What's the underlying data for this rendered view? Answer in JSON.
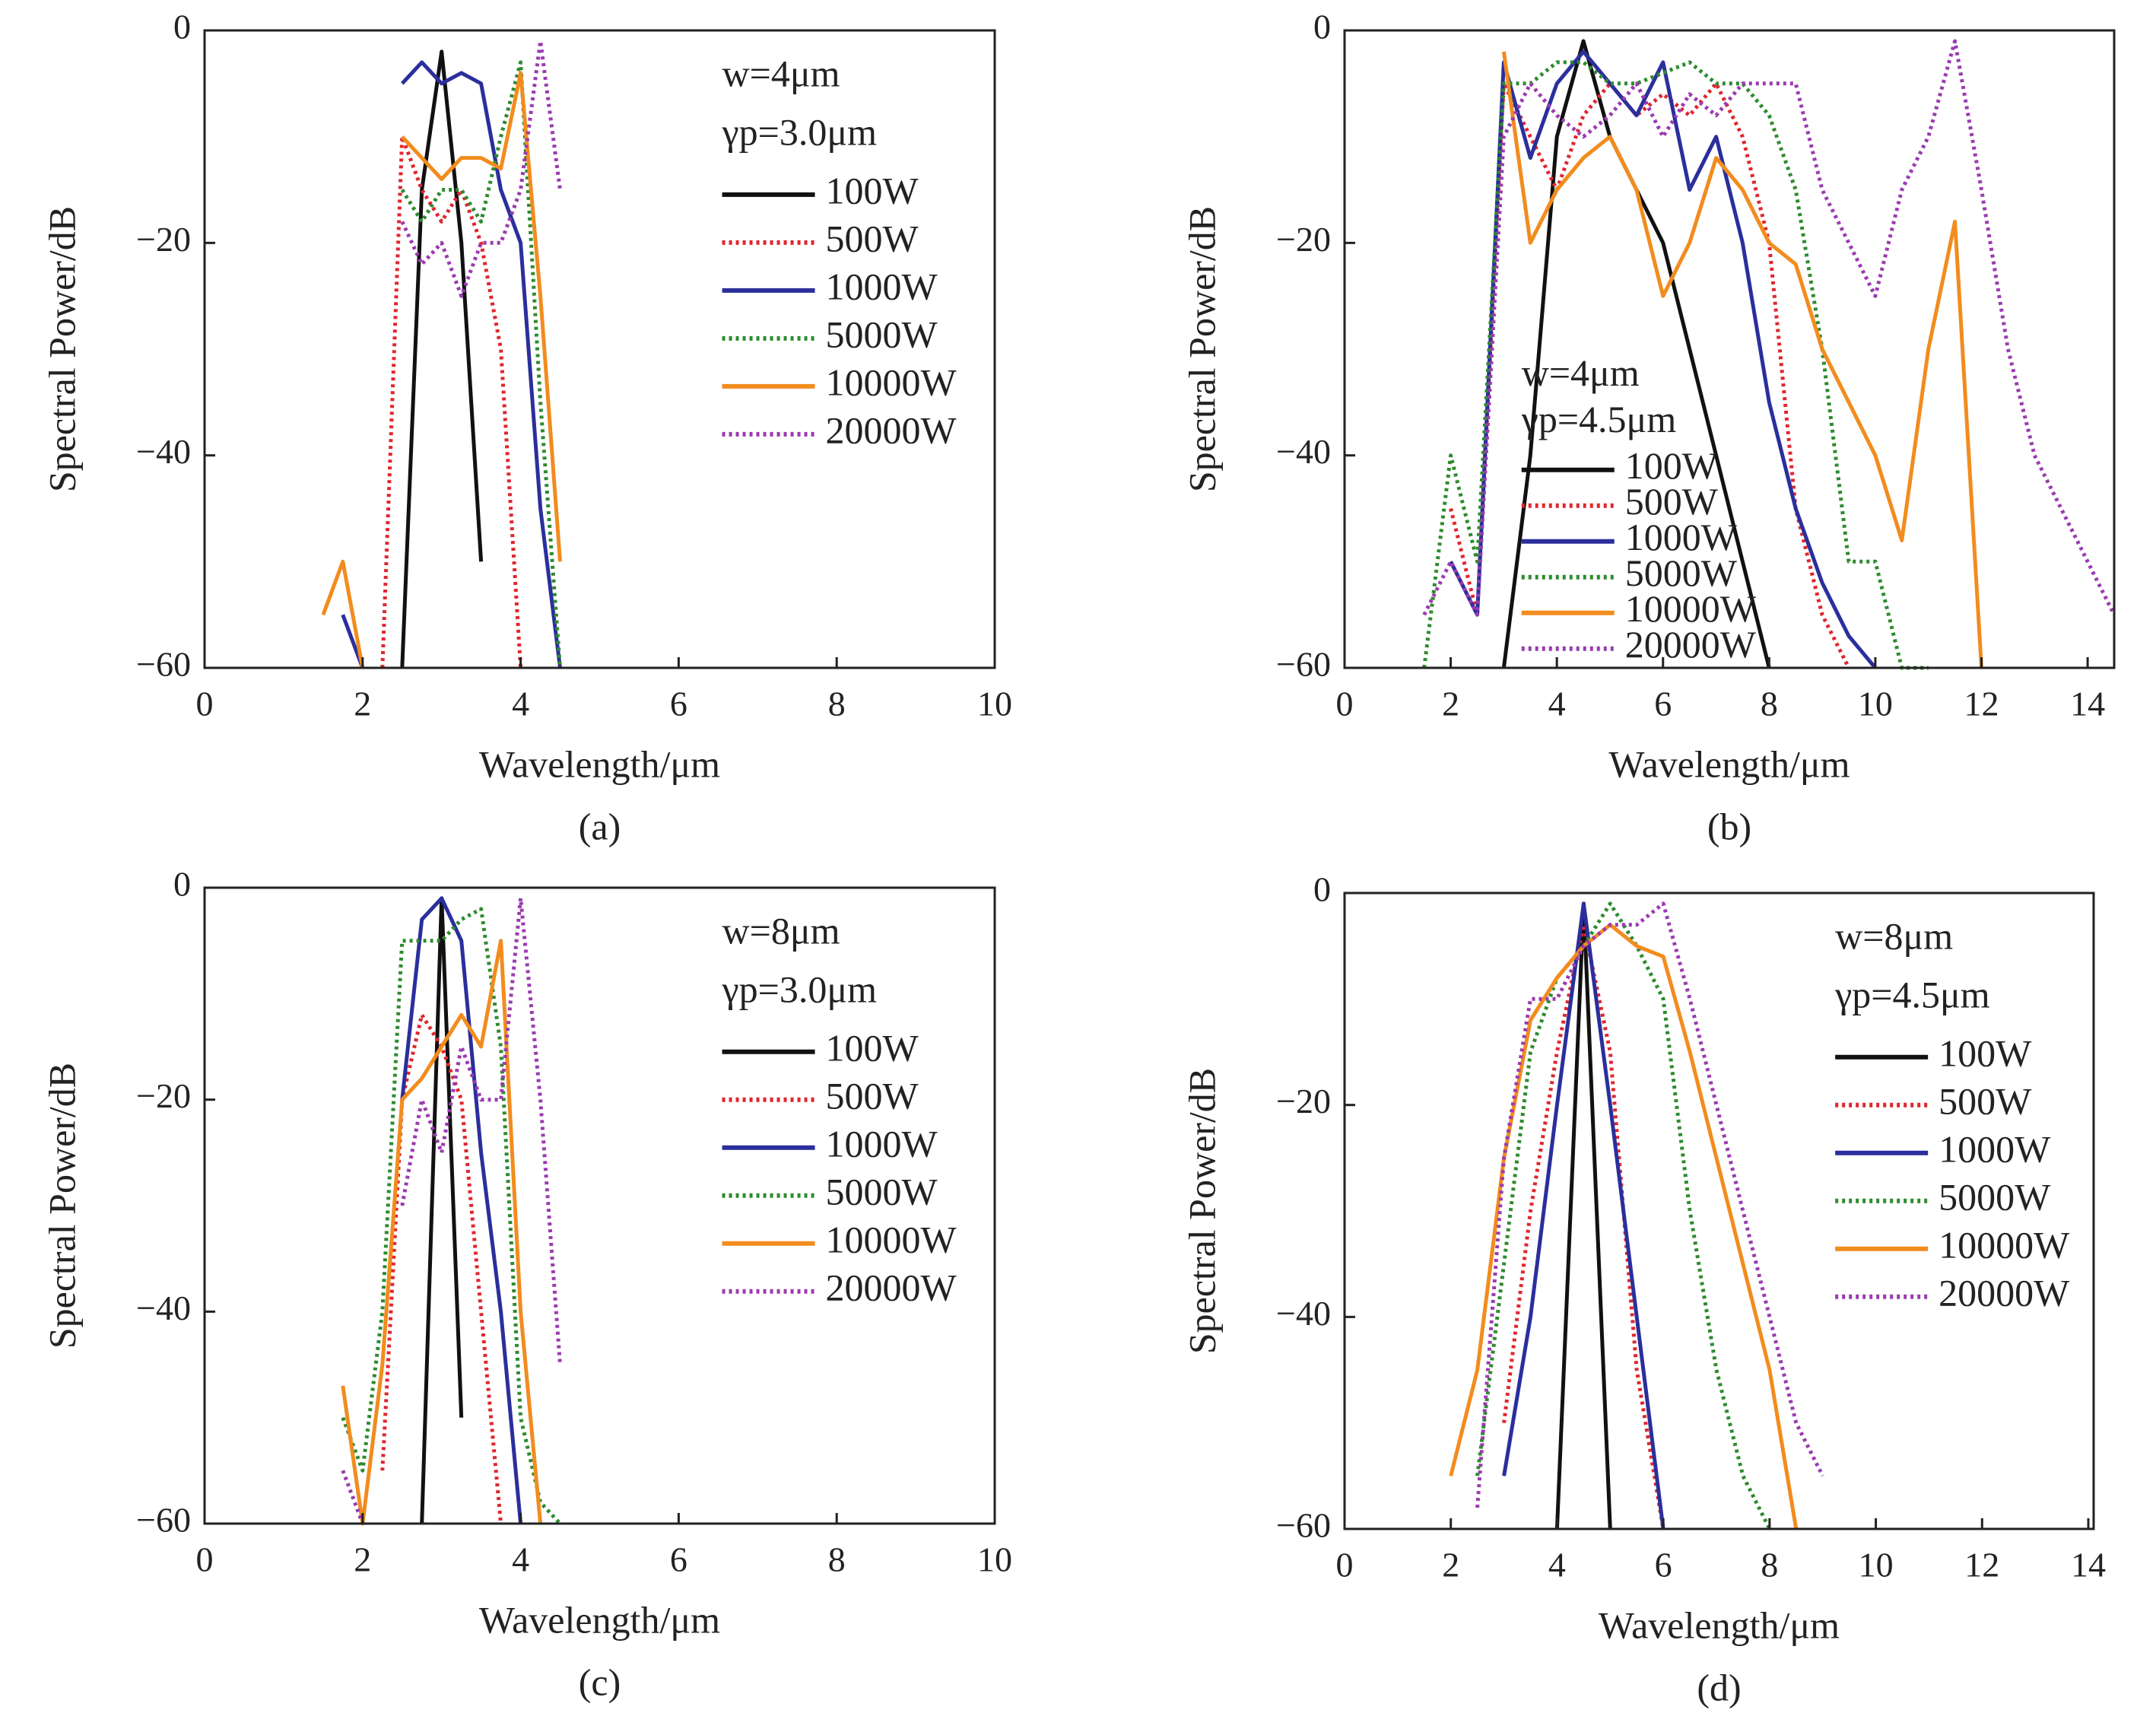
{
  "chart_data": [
    {
      "type": "line",
      "caption": "(a)",
      "xlabel": "Wavelength/μm",
      "ylabel": "Spectral Power/dB",
      "annotations": [
        "w=4μm",
        "γp=3.0μm"
      ],
      "legend": "upper right",
      "xlim": [
        0,
        10
      ],
      "ylim": [
        -60,
        0
      ],
      "xticks": [
        0,
        2,
        4,
        6,
        8,
        10
      ],
      "yticks": [
        {
          "value": -60,
          "label": "−60"
        },
        {
          "value": -40,
          "label": "−40"
        },
        {
          "value": -20,
          "label": "−20"
        },
        0
      ],
      "x": [
        1.5,
        1.75,
        2.0,
        2.25,
        2.5,
        2.75,
        3.0,
        3.25,
        3.5,
        3.75,
        4.0,
        4.25,
        4.5,
        4.75
      ],
      "series": [
        {
          "name": "100W",
          "color": "#111111",
          "style": "solid",
          "values": [
            null,
            null,
            null,
            null,
            -60,
            -15,
            -2,
            -20,
            -50,
            null,
            null,
            null,
            null,
            null
          ]
        },
        {
          "name": "500W",
          "color": "#e0262e",
          "style": "dotted",
          "values": [
            null,
            null,
            null,
            -60,
            -10,
            -15,
            -18,
            -15,
            -20,
            -30,
            -60,
            null,
            null,
            null
          ]
        },
        {
          "name": "1000W",
          "color": "#2b2f9c",
          "style": "solid",
          "values": [
            null,
            -55,
            -60,
            null,
            -5,
            -3,
            -5,
            -4,
            -5,
            -15,
            -20,
            -45,
            -60,
            null
          ]
        },
        {
          "name": "5000W",
          "color": "#2e8b2e",
          "style": "dotted",
          "values": [
            null,
            null,
            null,
            null,
            -15,
            -18,
            -15,
            -15,
            -18,
            -10,
            -3,
            -35,
            -60,
            null
          ]
        },
        {
          "name": "10000W",
          "color": "#f28c1e",
          "style": "solid",
          "values": [
            -55,
            -50,
            -60,
            null,
            -10,
            -12,
            -14,
            -12,
            -12,
            -13,
            -4,
            -25,
            -50,
            null
          ]
        },
        {
          "name": "20000W",
          "color": "#9b3bb0",
          "style": "dotted",
          "values": [
            null,
            null,
            null,
            null,
            -18,
            -22,
            -20,
            -25,
            -20,
            -20,
            -15,
            -1,
            -15,
            null
          ]
        }
      ]
    },
    {
      "type": "line",
      "caption": "(b)",
      "xlabel": "Wavelength/μm",
      "ylabel": "Spectral Power/dB",
      "annotations": [
        "w=4μm",
        "γp=4.5μm"
      ],
      "legend": "lower left",
      "xlim": [
        0,
        14.5
      ],
      "ylim": [
        -60,
        0
      ],
      "xticks": [
        0,
        2,
        4,
        6,
        8,
        10,
        12,
        14
      ],
      "yticks": [
        {
          "value": -60,
          "label": "−60"
        },
        {
          "value": -40,
          "label": "−40"
        },
        {
          "value": -20,
          "label": "−20"
        },
        0
      ],
      "x": [
        1.5,
        2,
        2.5,
        3,
        3.5,
        4,
        4.5,
        5,
        5.5,
        6,
        6.5,
        7,
        7.5,
        8,
        8.5,
        9,
        9.5,
        10,
        10.5,
        11,
        11.5,
        12,
        12.5,
        13,
        13.5,
        14,
        14.5
      ],
      "series": [
        {
          "name": "100W",
          "color": "#111111",
          "style": "solid",
          "values": [
            null,
            null,
            null,
            -60,
            -40,
            -10,
            -1,
            -10,
            -15,
            -20,
            -30,
            -40,
            -50,
            -60,
            null,
            null,
            null,
            null,
            null,
            null,
            null,
            null,
            null,
            null,
            null,
            null,
            null
          ]
        },
        {
          "name": "500W",
          "color": "#e0262e",
          "style": "dotted",
          "values": [
            null,
            -45,
            -55,
            -5,
            -10,
            -15,
            -8,
            -5,
            -8,
            -6,
            -8,
            -5,
            -10,
            -20,
            -45,
            -55,
            -60,
            null,
            null,
            null,
            null,
            null,
            null,
            null,
            null,
            null,
            null
          ]
        },
        {
          "name": "1000W",
          "color": "#2b2f9c",
          "style": "solid",
          "values": [
            null,
            -50,
            -55,
            -3,
            -12,
            -5,
            -2,
            -5,
            -8,
            -3,
            -15,
            -10,
            -20,
            -35,
            -45,
            -52,
            -57,
            -60,
            null,
            null,
            null,
            null,
            null,
            null,
            null,
            null,
            null
          ]
        },
        {
          "name": "5000W",
          "color": "#2e8b2e",
          "style": "dotted",
          "values": [
            -60,
            -40,
            -50,
            -5,
            -5,
            -3,
            -3,
            -5,
            -5,
            -4,
            -3,
            -5,
            -5,
            -8,
            -15,
            -30,
            -50,
            -50,
            -60,
            -60,
            null,
            null,
            null,
            null,
            null,
            null,
            null
          ]
        },
        {
          "name": "10000W",
          "color": "#f28c1e",
          "style": "solid",
          "values": [
            null,
            null,
            null,
            -2,
            -20,
            -15,
            -12,
            -10,
            -15,
            -25,
            -20,
            -12,
            -15,
            -20,
            -22,
            -30,
            -35,
            -40,
            -48,
            -30,
            -18,
            -60,
            null,
            null,
            null,
            null,
            null
          ]
        },
        {
          "name": "20000W",
          "color": "#9b3bb0",
          "style": "dotted",
          "values": [
            -55,
            -50,
            -55,
            -10,
            -5,
            -8,
            -10,
            -8,
            -5,
            -10,
            -6,
            -8,
            -5,
            -5,
            -5,
            -15,
            -20,
            -25,
            -15,
            -10,
            -1,
            -15,
            -30,
            -40,
            -45,
            -50,
            -55
          ]
        }
      ]
    },
    {
      "type": "line",
      "caption": "(c)",
      "xlabel": "Wavelength/μm",
      "ylabel": "Spectral Power/dB",
      "annotations": [
        "w=8μm",
        "γp=3.0μm"
      ],
      "legend": "upper right",
      "xlim": [
        0,
        10
      ],
      "ylim": [
        -60,
        0
      ],
      "xticks": [
        0,
        2,
        4,
        6,
        8,
        10
      ],
      "yticks": [
        {
          "value": -60,
          "label": "−60"
        },
        {
          "value": -40,
          "label": "−40"
        },
        {
          "value": -20,
          "label": "−20"
        },
        0
      ],
      "x": [
        1.5,
        1.75,
        2.0,
        2.25,
        2.5,
        2.75,
        3.0,
        3.25,
        3.5,
        3.75,
        4.0,
        4.25,
        4.5,
        4.75
      ],
      "series": [
        {
          "name": "100W",
          "color": "#111111",
          "style": "solid",
          "values": [
            null,
            null,
            null,
            null,
            null,
            -60,
            -1,
            -50,
            null,
            null,
            null,
            null,
            null,
            null
          ]
        },
        {
          "name": "500W",
          "color": "#e0262e",
          "style": "dotted",
          "values": [
            null,
            null,
            null,
            -55,
            -20,
            -12,
            -15,
            -20,
            -40,
            -60,
            null,
            null,
            null,
            null
          ]
        },
        {
          "name": "1000W",
          "color": "#2b2f9c",
          "style": "solid",
          "values": [
            null,
            null,
            null,
            null,
            -20,
            -3,
            -1,
            -5,
            -25,
            -40,
            -60,
            null,
            null,
            null
          ]
        },
        {
          "name": "5000W",
          "color": "#2e8b2e",
          "style": "dotted",
          "values": [
            null,
            -50,
            -55,
            -40,
            -5,
            -5,
            -5,
            -3,
            -2,
            -15,
            -50,
            -58,
            -60,
            null
          ]
        },
        {
          "name": "10000W",
          "color": "#f28c1e",
          "style": "solid",
          "values": [
            null,
            -47,
            -60,
            -45,
            -20,
            -18,
            -15,
            -12,
            -15,
            -5,
            -40,
            -60,
            null,
            null
          ]
        },
        {
          "name": "20000W",
          "color": "#9b3bb0",
          "style": "dotted",
          "values": [
            null,
            -55,
            -60,
            null,
            -30,
            -20,
            -25,
            -15,
            -20,
            -20,
            -1,
            -20,
            -45,
            null
          ]
        }
      ]
    },
    {
      "type": "line",
      "caption": "(d)",
      "xlabel": "Wavelength/μm",
      "ylabel": "Spectral Power/dB",
      "annotations": [
        "w=8μm",
        "γp=4.5μm"
      ],
      "legend": "upper right",
      "xlim": [
        0,
        14.1
      ],
      "ylim": [
        -60,
        0
      ],
      "xticks": [
        0,
        2,
        4,
        6,
        8,
        10,
        12,
        14
      ],
      "yticks": [
        {
          "value": -60,
          "label": "−60"
        },
        {
          "value": -40,
          "label": "−40"
        },
        {
          "value": -20,
          "label": "−20"
        },
        0
      ],
      "x": [
        2,
        2.5,
        3,
        3.5,
        4,
        4.5,
        5,
        5.5,
        6,
        6.5,
        7,
        7.5,
        8,
        8.5,
        9,
        9.5
      ],
      "series": [
        {
          "name": "100W",
          "color": "#111111",
          "style": "solid",
          "values": [
            null,
            null,
            null,
            null,
            -60,
            -1,
            -60,
            null,
            null,
            null,
            null,
            null,
            null,
            null,
            null,
            null
          ]
        },
        {
          "name": "500W",
          "color": "#e0262e",
          "style": "dotted",
          "values": [
            null,
            null,
            -50,
            -30,
            -15,
            -3,
            -15,
            -45,
            -60,
            null,
            null,
            null,
            null,
            null,
            null,
            null
          ]
        },
        {
          "name": "1000W",
          "color": "#2b2f9c",
          "style": "solid",
          "values": [
            null,
            null,
            -55,
            -40,
            -20,
            -1,
            -20,
            -40,
            -60,
            null,
            null,
            null,
            null,
            null,
            null,
            null
          ]
        },
        {
          "name": "5000W",
          "color": "#2e8b2e",
          "style": "dotted",
          "values": [
            null,
            -55,
            -35,
            -15,
            -8,
            -5,
            -1,
            -5,
            -10,
            -30,
            -45,
            -55,
            -60,
            null,
            null,
            null
          ]
        },
        {
          "name": "10000W",
          "color": "#f28c1e",
          "style": "solid",
          "values": [
            -55,
            -45,
            -25,
            -12,
            -8,
            -5,
            -3,
            -5,
            -6,
            -15,
            -25,
            -35,
            -45,
            -60,
            null,
            null
          ]
        },
        {
          "name": "20000W",
          "color": "#9b3bb0",
          "style": "dotted",
          "values": [
            null,
            -58,
            -25,
            -10,
            -10,
            -5,
            -3,
            -3,
            -1,
            -10,
            -20,
            -30,
            -40,
            -50,
            -55,
            null
          ]
        }
      ]
    }
  ]
}
